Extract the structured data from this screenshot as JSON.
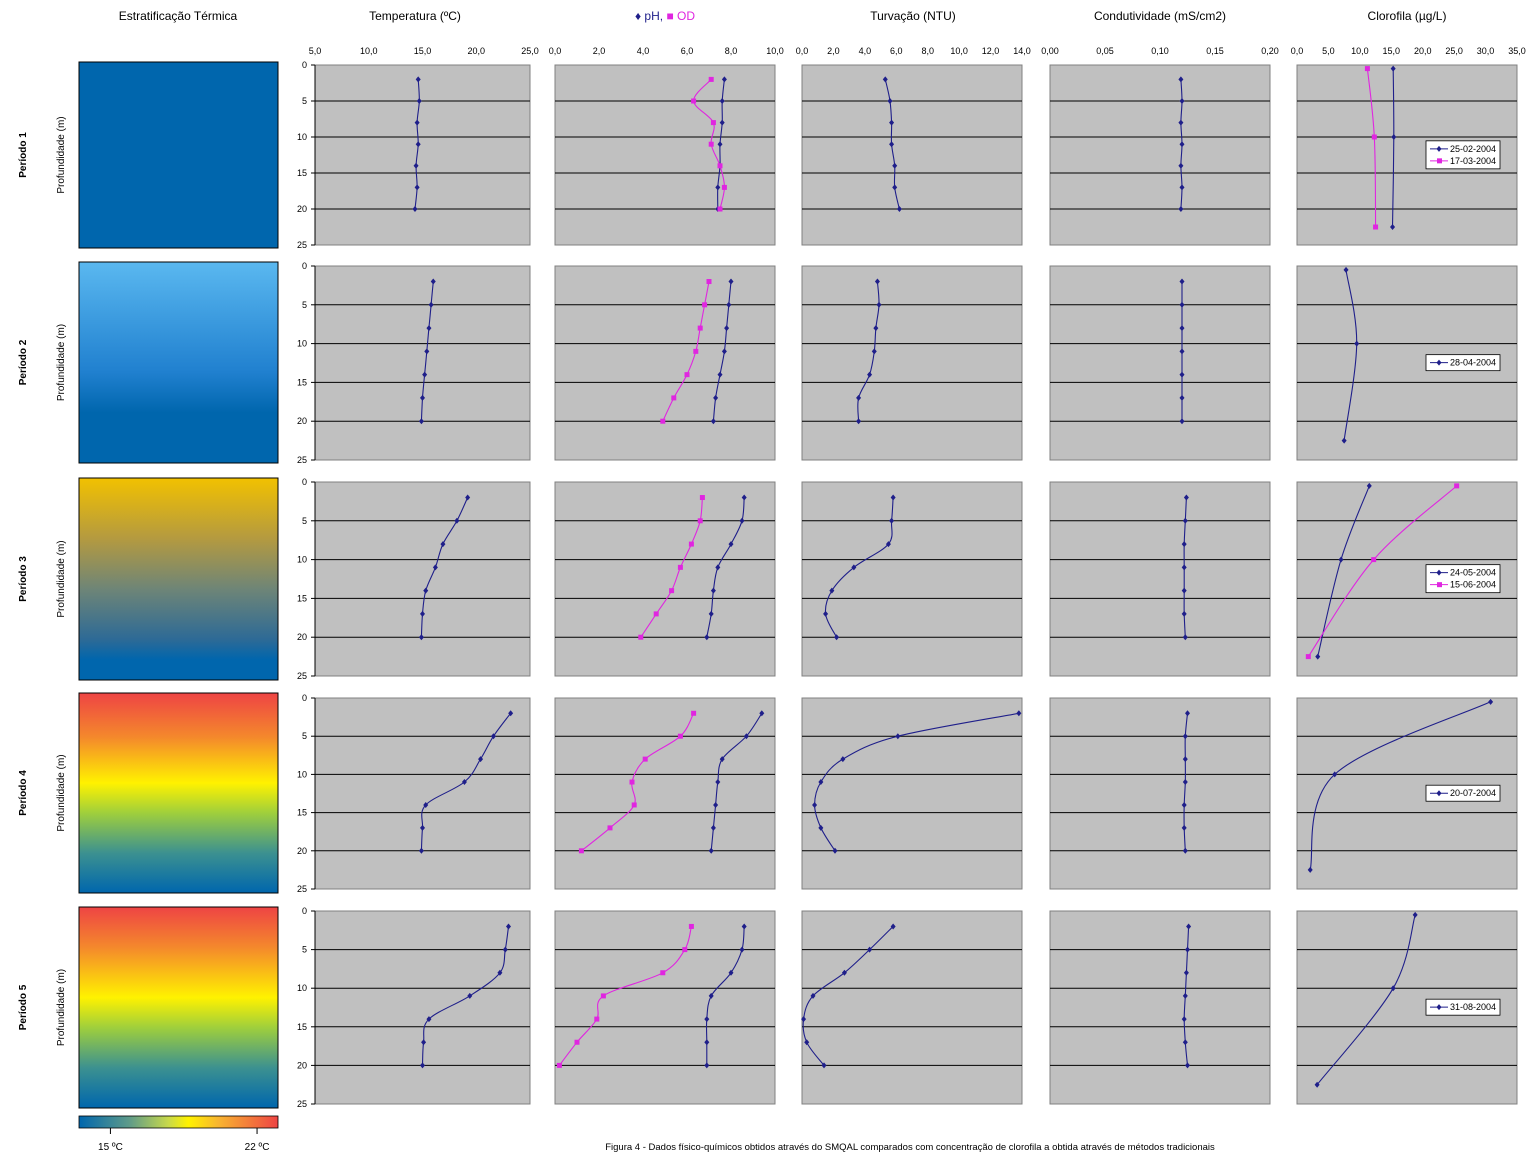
{
  "column_headers": [
    "Estratificação Térmica",
    "Temperatura (ºC)",
    "pH, OD",
    "Turvação (NTU)",
    "Condutividade (mS/cm2)",
    "Clorofila (µg/L)"
  ],
  "ph_od_header": {
    "ph_label": "pH,",
    "od_label": "OD",
    "ph_color": "#1f1f8a",
    "od_color": "#e026e0"
  },
  "row_labels": [
    "Período 1",
    "Período 2",
    "Período 3",
    "Período 4",
    "Período 5"
  ],
  "depth_axis_label": "Profundidade (m)",
  "colorbar": {
    "low_label": "15 ºC",
    "high_label": "22 ºC",
    "low_temp": 15,
    "high_temp": 22
  },
  "caption": "Figura 4 - Dados físico-químicos obtidos através do SMQAL comparados com concentração de clorofila a obtida através de métodos tradicionais",
  "colors": {
    "plot_bg": "#c0c0c0",
    "series1": "#1f1f8a",
    "series2": "#e026e0",
    "stratification_cold": "#0066ad",
    "stratification_warm": "#ee4444"
  },
  "chart_data": [
    {
      "type": "line",
      "variable": "Temperatura",
      "xlim": [
        5,
        25
      ],
      "xticks": [
        "5,0",
        "10,0",
        "15,0",
        "20,0",
        "25,0"
      ],
      "ylim": [
        0,
        25
      ],
      "yticks": [
        "0",
        "5",
        "10",
        "15",
        "20",
        "25"
      ],
      "periods": [
        {
          "series": [
            {
              "y": [
                2,
                5,
                8,
                11,
                14,
                17,
                20
              ],
              "x": [
                14.6,
                14.7,
                14.5,
                14.6,
                14.4,
                14.5,
                14.3
              ]
            }
          ]
        },
        {
          "series": [
            {
              "y": [
                2,
                5,
                8,
                11,
                14,
                17,
                20
              ],
              "x": [
                16.0,
                15.8,
                15.6,
                15.4,
                15.2,
                15.0,
                14.9
              ]
            }
          ]
        },
        {
          "series": [
            {
              "y": [
                2,
                5,
                8,
                11,
                14,
                17,
                20
              ],
              "x": [
                19.2,
                18.2,
                16.9,
                16.2,
                15.3,
                15.0,
                14.9
              ]
            }
          ]
        },
        {
          "series": [
            {
              "y": [
                2,
                5,
                8,
                11,
                14,
                17,
                20
              ],
              "x": [
                23.2,
                21.6,
                20.4,
                18.9,
                15.3,
                15.0,
                14.9
              ]
            }
          ]
        },
        {
          "series": [
            {
              "y": [
                2,
                5,
                8,
                11,
                14,
                17,
                20
              ],
              "x": [
                23.0,
                22.7,
                22.2,
                19.4,
                15.6,
                15.1,
                15.0
              ]
            }
          ]
        }
      ]
    },
    {
      "type": "line",
      "variable": "pH, OD",
      "xlim": [
        0,
        10
      ],
      "xticks": [
        "0,0",
        "2,0",
        "4,0",
        "6,0",
        "8,0",
        "10,0"
      ],
      "ylim": [
        0,
        25
      ],
      "yticks": [
        "0",
        "5",
        "10",
        "15",
        "20",
        "25"
      ],
      "periods": [
        {
          "series": [
            {
              "name": "pH",
              "y": [
                2,
                5,
                8,
                11,
                14,
                17,
                20
              ],
              "x": [
                7.7,
                7.6,
                7.6,
                7.5,
                7.5,
                7.4,
                7.4
              ]
            },
            {
              "name": "OD",
              "y": [
                2,
                5,
                8,
                11,
                14,
                17,
                20
              ],
              "x": [
                7.1,
                6.3,
                7.2,
                7.1,
                7.5,
                7.7,
                7.5
              ]
            }
          ]
        },
        {
          "series": [
            {
              "name": "pH",
              "y": [
                2,
                5,
                8,
                11,
                14,
                17,
                20
              ],
              "x": [
                8.0,
                7.9,
                7.8,
                7.7,
                7.5,
                7.3,
                7.2
              ]
            },
            {
              "name": "OD",
              "y": [
                2,
                5,
                8,
                11,
                14,
                17,
                20
              ],
              "x": [
                7.0,
                6.8,
                6.6,
                6.4,
                6.0,
                5.4,
                4.9
              ]
            }
          ]
        },
        {
          "series": [
            {
              "name": "pH",
              "y": [
                2,
                5,
                8,
                11,
                14,
                17,
                20
              ],
              "x": [
                8.6,
                8.5,
                8.0,
                7.4,
                7.2,
                7.1,
                6.9
              ]
            },
            {
              "name": "OD",
              "y": [
                2,
                5,
                8,
                11,
                14,
                17,
                20
              ],
              "x": [
                6.7,
                6.6,
                6.2,
                5.7,
                5.3,
                4.6,
                3.9
              ]
            }
          ]
        },
        {
          "series": [
            {
              "name": "pH",
              "y": [
                2,
                5,
                8,
                11,
                14,
                17,
                20
              ],
              "x": [
                9.4,
                8.7,
                7.6,
                7.4,
                7.3,
                7.2,
                7.1
              ]
            },
            {
              "name": "OD",
              "y": [
                2,
                5,
                8,
                11,
                14,
                17,
                20
              ],
              "x": [
                6.3,
                5.7,
                4.1,
                3.5,
                3.6,
                2.5,
                1.2
              ]
            }
          ]
        },
        {
          "series": [
            {
              "name": "pH",
              "y": [
                2,
                5,
                8,
                11,
                14,
                17,
                20
              ],
              "x": [
                8.6,
                8.5,
                8.0,
                7.1,
                6.9,
                6.9,
                6.9
              ]
            },
            {
              "name": "OD",
              "y": [
                2,
                5,
                8,
                11,
                14,
                17,
                20
              ],
              "x": [
                6.2,
                5.9,
                4.9,
                2.2,
                1.9,
                1.0,
                0.2
              ]
            }
          ]
        }
      ]
    },
    {
      "type": "line",
      "variable": "Turvação",
      "xlim": [
        0,
        14
      ],
      "xticks": [
        "0,0",
        "2,0",
        "4,0",
        "6,0",
        "8,0",
        "10,0",
        "12,0",
        "14,0"
      ],
      "ylim": [
        0,
        25
      ],
      "yticks": [
        "0",
        "5",
        "10",
        "15",
        "20",
        "25"
      ],
      "periods": [
        {
          "series": [
            {
              "y": [
                2,
                5,
                8,
                11,
                14,
                17,
                20
              ],
              "x": [
                5.3,
                5.6,
                5.7,
                5.7,
                5.9,
                5.9,
                6.2
              ]
            }
          ]
        },
        {
          "series": [
            {
              "y": [
                2,
                5,
                8,
                11,
                14,
                17,
                20
              ],
              "x": [
                4.8,
                4.9,
                4.7,
                4.6,
                4.3,
                3.6,
                3.6
              ]
            }
          ]
        },
        {
          "series": [
            {
              "y": [
                2,
                5,
                8,
                11,
                14,
                17,
                20
              ],
              "x": [
                5.8,
                5.7,
                5.5,
                3.3,
                1.9,
                1.5,
                2.2
              ]
            }
          ]
        },
        {
          "series": [
            {
              "y": [
                2,
                5,
                8,
                11,
                14,
                17,
                20
              ],
              "x": [
                13.8,
                6.1,
                2.6,
                1.2,
                0.8,
                1.2,
                2.1
              ]
            }
          ]
        },
        {
          "series": [
            {
              "y": [
                2,
                5,
                8,
                11,
                14,
                17,
                20
              ],
              "x": [
                5.8,
                4.3,
                2.7,
                0.7,
                0.1,
                0.3,
                1.4
              ]
            }
          ]
        }
      ]
    },
    {
      "type": "line",
      "variable": "Condutividade",
      "xlim": [
        0,
        0.2
      ],
      "xticks": [
        "0,00",
        "0,05",
        "0,10",
        "0,15",
        "0,20"
      ],
      "ylim": [
        0,
        25
      ],
      "yticks": [
        "0",
        "5",
        "10",
        "15",
        "20",
        "25"
      ],
      "periods": [
        {
          "series": [
            {
              "y": [
                2,
                5,
                8,
                11,
                14,
                17,
                20
              ],
              "x": [
                0.119,
                0.12,
                0.119,
                0.12,
                0.119,
                0.12,
                0.119
              ]
            }
          ]
        },
        {
          "series": [
            {
              "y": [
                2,
                5,
                8,
                11,
                14,
                17,
                20
              ],
              "x": [
                0.12,
                0.12,
                0.12,
                0.12,
                0.12,
                0.12,
                0.12
              ]
            }
          ]
        },
        {
          "series": [
            {
              "y": [
                2,
                5,
                8,
                11,
                14,
                17,
                20
              ],
              "x": [
                0.124,
                0.123,
                0.122,
                0.122,
                0.122,
                0.122,
                0.123
              ]
            }
          ]
        },
        {
          "series": [
            {
              "y": [
                2,
                5,
                8,
                11,
                14,
                17,
                20
              ],
              "x": [
                0.125,
                0.123,
                0.123,
                0.123,
                0.122,
                0.122,
                0.123
              ]
            }
          ]
        },
        {
          "series": [
            {
              "y": [
                2,
                5,
                8,
                11,
                14,
                17,
                20
              ],
              "x": [
                0.126,
                0.125,
                0.124,
                0.123,
                0.122,
                0.123,
                0.125
              ]
            }
          ]
        }
      ]
    },
    {
      "type": "line",
      "variable": "Clorofila",
      "xlim": [
        0,
        35
      ],
      "xticks": [
        "0,0",
        "5,0",
        "10,0",
        "15,0",
        "20,0",
        "25,0",
        "30,0",
        "35,0"
      ],
      "ylim": [
        0,
        25
      ],
      "yticks": [
        "0",
        "5",
        "10",
        "15",
        "20",
        "25"
      ],
      "periods": [
        {
          "series": [
            {
              "name": "25-02-2004",
              "y": [
                0.5,
                10,
                22.5
              ],
              "x": [
                15.3,
                15.4,
                15.2
              ]
            },
            {
              "name": "17-03-2004",
              "y": [
                0.5,
                10,
                22.5
              ],
              "x": [
                11.2,
                12.3,
                12.5
              ]
            }
          ]
        },
        {
          "series": [
            {
              "name": "28-04-2004",
              "y": [
                0.5,
                10,
                22.5
              ],
              "x": [
                7.8,
                9.5,
                7.5
              ]
            }
          ]
        },
        {
          "series": [
            {
              "name": "24-05-2004",
              "y": [
                0.5,
                10,
                22.5
              ],
              "x": [
                11.5,
                7.0,
                3.3
              ]
            },
            {
              "name": "15-06-2004",
              "y": [
                0.5,
                10,
                22.5
              ],
              "x": [
                25.4,
                12.2,
                1.8
              ]
            }
          ]
        },
        {
          "series": [
            {
              "name": "20-07-2004",
              "y": [
                0.5,
                10,
                22.5
              ],
              "x": [
                30.8,
                6.0,
                2.1
              ]
            }
          ]
        },
        {
          "series": [
            {
              "name": "31-08-2004",
              "y": [
                0.5,
                10,
                22.5
              ],
              "x": [
                18.8,
                15.3,
                3.2
              ]
            }
          ]
        }
      ]
    }
  ]
}
